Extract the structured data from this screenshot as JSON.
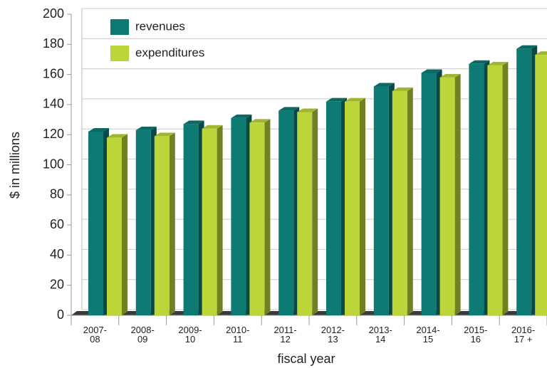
{
  "chart_data": {
    "type": "bar3d",
    "categories": [
      "2007-08",
      "2008-09",
      "2009-10",
      "2010-11",
      "2011-12",
      "2012-13",
      "2013-14",
      "2014-15",
      "2015-16",
      "2016-17 +"
    ],
    "series": [
      {
        "name": "revenues",
        "color": "#0e7a74",
        "values": [
          122,
          123,
          127,
          131,
          136,
          142,
          152,
          161,
          167,
          177
        ]
      },
      {
        "name": "expenditures",
        "color": "#bcd63a",
        "values": [
          118,
          119,
          124,
          128,
          135,
          142,
          149,
          158,
          166,
          173
        ]
      }
    ],
    "xlabel": "fiscal year",
    "ylabel": "$ in millions",
    "ylim": [
      0,
      200
    ],
    "yticks": [
      0,
      20,
      40,
      60,
      80,
      100,
      120,
      140,
      160,
      180,
      200
    ],
    "grid": true
  }
}
